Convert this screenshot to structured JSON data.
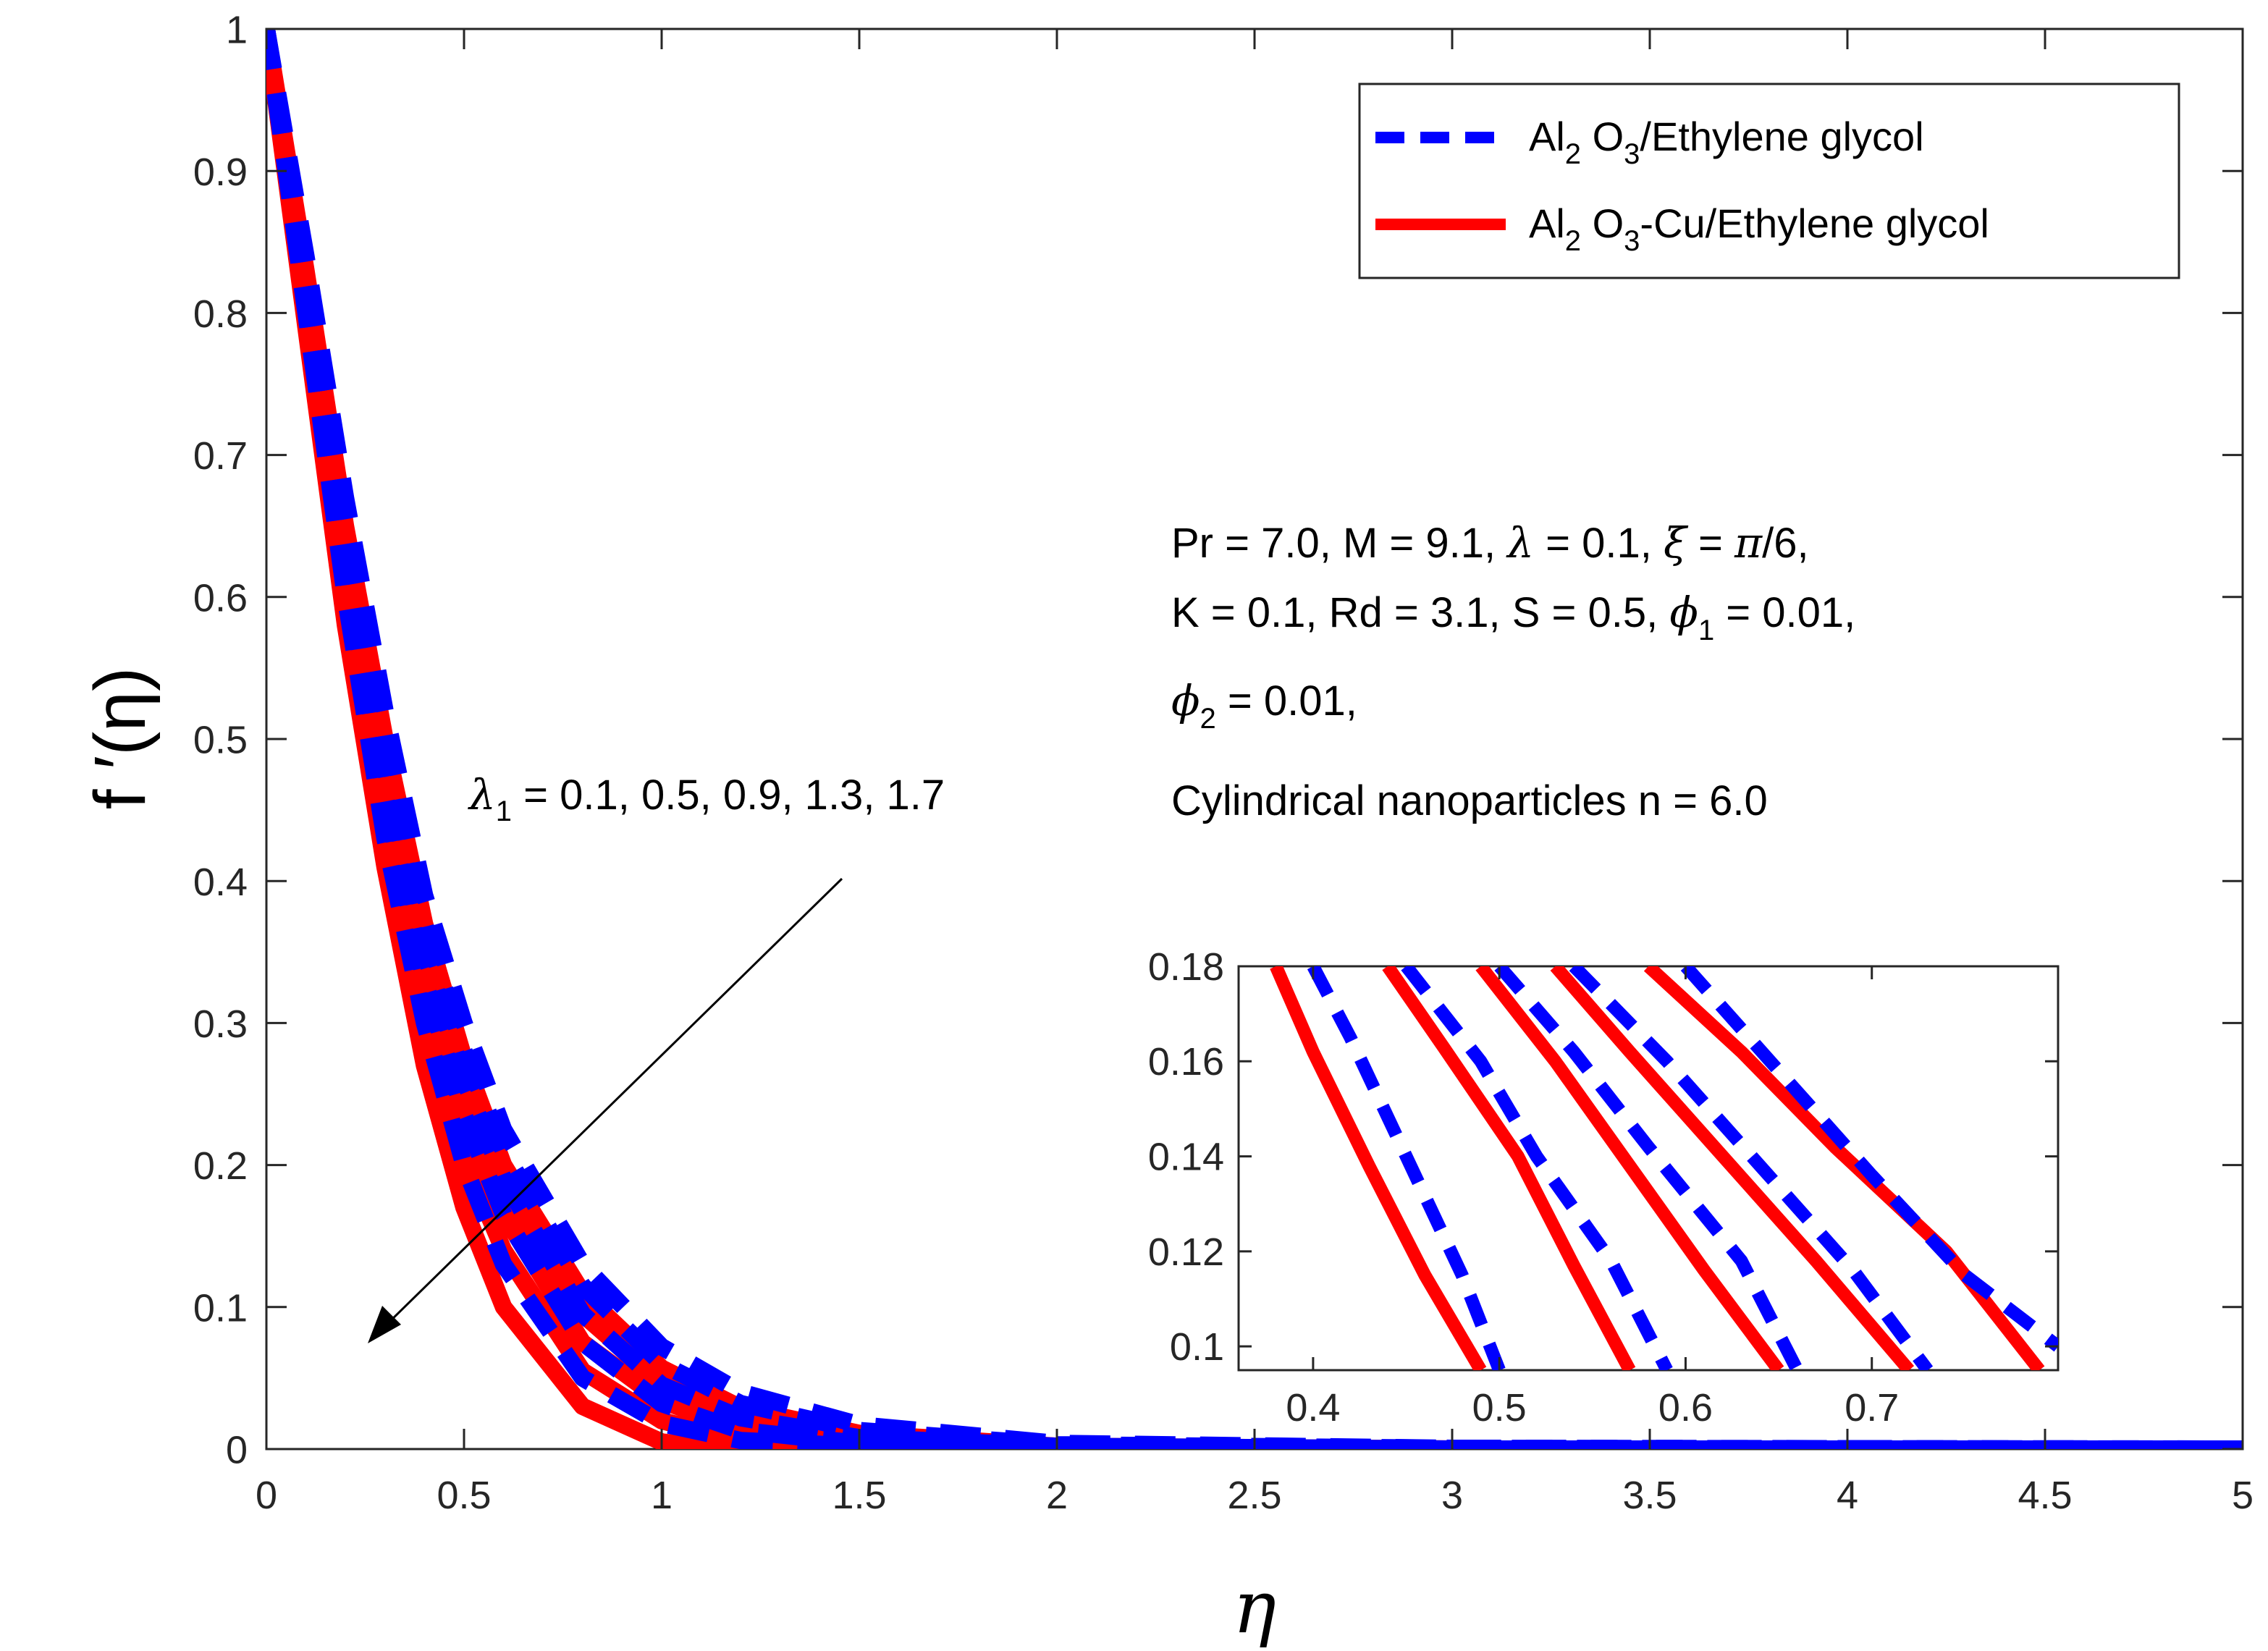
{
  "chart_data": [
    {
      "type": "line",
      "role": "main",
      "xlabel": "η",
      "ylabel": "f ′(η)",
      "xlim": [
        0,
        5
      ],
      "ylim": [
        0,
        1
      ],
      "xticks": [
        "0",
        "0.5",
        "1",
        "1.5",
        "2",
        "2.5",
        "3",
        "3.5",
        "4",
        "4.5",
        "5"
      ],
      "yticks": [
        "0",
        "0.1",
        "0.2",
        "0.3",
        "0.4",
        "0.5",
        "0.6",
        "0.7",
        "0.8",
        "0.9",
        "1"
      ],
      "parameter_label": "λ1 = 0.1, 0.5, 0.9, 1.3, 1.7",
      "parameter_values": [
        0.1,
        0.5,
        0.9,
        1.3,
        1.7
      ],
      "series": [
        {
          "name": "Al2 O3/Ethylene glycol",
          "style": "dashed",
          "color": "#0000ff",
          "curves": [
            {
              "lambda1": 0.1,
              "x": [
                0,
                0.1,
                0.2,
                0.3,
                0.4,
                0.5,
                0.6,
                0.8,
                1.0,
                1.2,
                1.5,
                2.0,
                3.0,
                5.0
              ],
              "y": [
                1,
                0.8,
                0.6,
                0.43,
                0.3,
                0.2,
                0.13,
                0.05,
                0.018,
                0.006,
                0.002,
                0.0005,
                0,
                0
              ]
            },
            {
              "lambda1": 0.5,
              "x": [
                0,
                0.1,
                0.2,
                0.3,
                0.4,
                0.5,
                0.6,
                0.8,
                1.0,
                1.2,
                1.5,
                2.0,
                3.0,
                5.0
              ],
              "y": [
                1,
                0.81,
                0.62,
                0.46,
                0.33,
                0.235,
                0.165,
                0.075,
                0.032,
                0.013,
                0.004,
                0.001,
                0,
                0
              ]
            },
            {
              "lambda1": 0.9,
              "x": [
                0,
                0.1,
                0.2,
                0.3,
                0.4,
                0.5,
                0.6,
                0.8,
                1.0,
                1.2,
                1.5,
                2.0,
                3.0,
                5.0
              ],
              "y": [
                1,
                0.82,
                0.64,
                0.48,
                0.35,
                0.26,
                0.19,
                0.095,
                0.045,
                0.022,
                0.008,
                0.002,
                0,
                0
              ]
            },
            {
              "lambda1": 1.3,
              "x": [
                0,
                0.1,
                0.2,
                0.3,
                0.4,
                0.5,
                0.6,
                0.8,
                1.0,
                1.2,
                1.5,
                2.0,
                3.0,
                5.0
              ],
              "y": [
                1,
                0.83,
                0.65,
                0.5,
                0.37,
                0.28,
                0.21,
                0.115,
                0.06,
                0.032,
                0.013,
                0.003,
                0.0005,
                0
              ]
            },
            {
              "lambda1": 1.7,
              "x": [
                0,
                0.1,
                0.2,
                0.3,
                0.4,
                0.5,
                0.6,
                0.8,
                1.0,
                1.2,
                1.5,
                2.0,
                3.0,
                5.0
              ],
              "y": [
                1,
                0.84,
                0.67,
                0.52,
                0.39,
                0.3,
                0.225,
                0.13,
                0.072,
                0.04,
                0.017,
                0.004,
                0.0005,
                0
              ]
            }
          ]
        },
        {
          "name": "Al2 O3-Cu/Ethylene glycol",
          "style": "solid",
          "color": "#ff0000",
          "curves": [
            {
              "lambda1": 0.1,
              "x": [
                0,
                0.1,
                0.2,
                0.3,
                0.4,
                0.5,
                0.6,
                0.8,
                1.0,
                1.2,
                1.5,
                2.0,
                3.0,
                5.0
              ],
              "y": [
                1,
                0.79,
                0.58,
                0.41,
                0.27,
                0.17,
                0.1,
                0.03,
                0.005,
                -0.002,
                -0.002,
                0,
                0,
                0
              ]
            },
            {
              "lambda1": 0.5,
              "x": [
                0,
                0.1,
                0.2,
                0.3,
                0.4,
                0.5,
                0.6,
                0.8,
                1.0,
                1.2,
                1.5,
                2.0,
                3.0,
                5.0
              ],
              "y": [
                1,
                0.8,
                0.6,
                0.44,
                0.3,
                0.205,
                0.14,
                0.055,
                0.02,
                0.006,
                0.001,
                0,
                0,
                0
              ]
            },
            {
              "lambda1": 0.9,
              "x": [
                0,
                0.1,
                0.2,
                0.3,
                0.4,
                0.5,
                0.6,
                0.8,
                1.0,
                1.2,
                1.5,
                2.0,
                3.0,
                5.0
              ],
              "y": [
                1,
                0.81,
                0.62,
                0.46,
                0.33,
                0.235,
                0.165,
                0.075,
                0.034,
                0.014,
                0.004,
                0.001,
                0,
                0
              ]
            },
            {
              "lambda1": 1.3,
              "x": [
                0,
                0.1,
                0.2,
                0.3,
                0.4,
                0.5,
                0.6,
                0.8,
                1.0,
                1.2,
                1.5,
                2.0,
                3.0,
                5.0
              ],
              "y": [
                1,
                0.82,
                0.63,
                0.48,
                0.35,
                0.255,
                0.185,
                0.095,
                0.046,
                0.022,
                0.007,
                0.001,
                0,
                0
              ]
            },
            {
              "lambda1": 1.7,
              "x": [
                0,
                0.1,
                0.2,
                0.3,
                0.4,
                0.5,
                0.6,
                0.8,
                1.0,
                1.2,
                1.5,
                2.0,
                3.0,
                5.0
              ],
              "y": [
                1,
                0.83,
                0.65,
                0.5,
                0.37,
                0.275,
                0.2,
                0.11,
                0.057,
                0.029,
                0.011,
                0.002,
                0,
                0
              ]
            }
          ]
        }
      ],
      "legend": {
        "position": "top-right",
        "entries": [
          {
            "main": "Al",
            "sub": "2",
            "mid": " O",
            "sub2": "3",
            "rest": "/Ethylene glycol"
          },
          {
            "main": "Al",
            "sub": "2",
            "mid": " O",
            "sub2": "3",
            "rest": "-Cu/Ethylene glycol"
          }
        ]
      },
      "annotation": {
        "line1": "Pr = 7.0, M = 9.1, ",
        "line1_greek1": "λ",
        "line1_b": " = 0.1, ",
        "line1_greek2": "ξ",
        "line1_c": " = ",
        "line1_greek3": "π",
        "line1_d": "/6,",
        "line2": "K = 0.1, Rd = 3.1, S = 0.5, ",
        "line2_greek": "ϕ",
        "line2_sub": "1",
        "line2_b": " = 0.01,",
        "line3_greek": "ϕ",
        "line3_sub": "2",
        "line3_b": " = 0.01,",
        "line4": "Cylindrical nanoparticles n = 6.0"
      },
      "lambda_label": {
        "greek": "λ",
        "sub": "1",
        "rest": " = 0.1, 0.5, 0.9, 1.3, 1.7"
      }
    },
    {
      "type": "line",
      "role": "inset",
      "xlim": [
        0.36,
        0.8
      ],
      "ylim": [
        0.095,
        0.18
      ],
      "xticks": [
        "0.4",
        "0.5",
        "0.6",
        "0.7"
      ],
      "yticks": [
        "0.1",
        "0.12",
        "0.14",
        "0.16",
        "0.18"
      ],
      "series": [
        {
          "name": "Al2 O3/Ethylene glycol",
          "style": "dashed",
          "color": "#0000ff",
          "curves": [
            {
              "lambda1": 0.1,
              "x": [
                0.4,
                0.42,
                0.45,
                0.48,
                0.5
              ],
              "y": [
                0.18,
                0.165,
                0.14,
                0.115,
                0.095
              ]
            },
            {
              "lambda1": 0.5,
              "x": [
                0.45,
                0.49,
                0.52,
                0.56,
                0.59
              ],
              "y": [
                0.18,
                0.16,
                0.14,
                0.118,
                0.095
              ]
            },
            {
              "lambda1": 0.9,
              "x": [
                0.5,
                0.54,
                0.58,
                0.63,
                0.66
              ],
              "y": [
                0.18,
                0.162,
                0.142,
                0.118,
                0.095
              ]
            },
            {
              "lambda1": 1.3,
              "x": [
                0.54,
                0.59,
                0.64,
                0.69,
                0.73
              ],
              "y": [
                0.18,
                0.16,
                0.138,
                0.116,
                0.095
              ]
            },
            {
              "lambda1": 1.7,
              "x": [
                0.6,
                0.65,
                0.7,
                0.75,
                0.8
              ],
              "y": [
                0.18,
                0.158,
                0.136,
                0.115,
                0.1
              ]
            }
          ]
        },
        {
          "name": "Al2 O3-Cu/Ethylene glycol",
          "style": "solid",
          "color": "#ff0000",
          "curves": [
            {
              "lambda1": 0.1,
              "x": [
                0.38,
                0.4,
                0.43,
                0.46,
                0.49
              ],
              "y": [
                0.18,
                0.162,
                0.138,
                0.115,
                0.095
              ]
            },
            {
              "lambda1": 0.5,
              "x": [
                0.44,
                0.47,
                0.51,
                0.54,
                0.57
              ],
              "y": [
                0.18,
                0.163,
                0.14,
                0.117,
                0.095
              ]
            },
            {
              "lambda1": 0.9,
              "x": [
                0.49,
                0.53,
                0.57,
                0.61,
                0.65
              ],
              "y": [
                0.18,
                0.16,
                0.138,
                0.116,
                0.095
              ]
            },
            {
              "lambda1": 1.3,
              "x": [
                0.53,
                0.57,
                0.62,
                0.67,
                0.72
              ],
              "y": [
                0.18,
                0.162,
                0.14,
                0.118,
                0.095
              ]
            },
            {
              "lambda1": 1.7,
              "x": [
                0.58,
                0.63,
                0.68,
                0.74,
                0.79
              ],
              "y": [
                0.18,
                0.162,
                0.142,
                0.12,
                0.095
              ]
            }
          ]
        }
      ]
    }
  ]
}
